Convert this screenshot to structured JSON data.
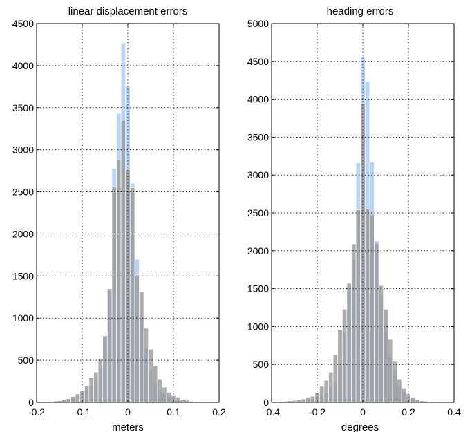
{
  "chart_data": [
    {
      "type": "bar",
      "title": "linear displacement errors",
      "xlabel": "meters",
      "ylabel": "",
      "xlim": [
        -0.2,
        0.2
      ],
      "ylim": [
        0,
        4500
      ],
      "xticks": [
        -0.2,
        -0.1,
        0,
        0.1,
        0.2
      ],
      "xtick_labels": [
        "-0.2",
        "-0.1",
        "0",
        "0.1",
        "0.2"
      ],
      "yticks": [
        0,
        500,
        1000,
        1500,
        2000,
        2500,
        3000,
        3500,
        4000,
        4500
      ],
      "ytick_labels": [
        "0",
        "500",
        "1000",
        "1500",
        "2000",
        "2500",
        "3000",
        "3500",
        "4000",
        "4500"
      ],
      "grid": true,
      "bin_width": 0.01,
      "x": [
        -0.17,
        -0.16,
        -0.15,
        -0.14,
        -0.13,
        -0.12,
        -0.11,
        -0.1,
        -0.09,
        -0.08,
        -0.07,
        -0.06,
        -0.05,
        -0.04,
        -0.03,
        -0.02,
        -0.01,
        0.0,
        0.01,
        0.02,
        0.03,
        0.04,
        0.05,
        0.06,
        0.07,
        0.08,
        0.09,
        0.1,
        0.11,
        0.12,
        0.13,
        0.14,
        0.15,
        0.16,
        0.17
      ],
      "series": [
        {
          "values": [
            5,
            10,
            15,
            25,
            35,
            55,
            75,
            110,
            145,
            200,
            280,
            400,
            790,
            1340,
            2780,
            3430,
            4270,
            3760,
            2600,
            1700,
            1020,
            640,
            390,
            240,
            150,
            100,
            70,
            50,
            35,
            25,
            15,
            10,
            5,
            5,
            5
          ],
          "color": "#b8d4f7"
        },
        {
          "values": [
            10,
            15,
            20,
            30,
            45,
            70,
            100,
            140,
            200,
            290,
            360,
            520,
            790,
            1350,
            2560,
            2880,
            3350,
            2760,
            2550,
            1500,
            1310,
            880,
            630,
            430,
            270,
            180,
            120,
            80,
            55,
            35,
            25,
            15,
            10,
            5,
            5
          ],
          "color": "#9b9b9b"
        }
      ]
    },
    {
      "type": "bar",
      "title": "heading errors",
      "xlabel": "degrees",
      "ylabel": "",
      "xlim": [
        -0.4,
        0.4
      ],
      "ylim": [
        0,
        5000
      ],
      "xticks": [
        -0.4,
        -0.2,
        0,
        0.2,
        0.4
      ],
      "xtick_labels": [
        "-0.4",
        "-0.2",
        "0",
        "0.2",
        "0.4"
      ],
      "yticks": [
        0,
        500,
        1000,
        1500,
        2000,
        2500,
        3000,
        3500,
        4000,
        4500,
        5000
      ],
      "ytick_labels": [
        "0",
        "500",
        "1000",
        "1500",
        "2000",
        "2500",
        "3000",
        "3500",
        "4000",
        "4500",
        "5000"
      ],
      "grid": true,
      "bin_width": 0.02,
      "x": [
        -0.36,
        -0.34,
        -0.32,
        -0.3,
        -0.28,
        -0.26,
        -0.24,
        -0.22,
        -0.2,
        -0.18,
        -0.16,
        -0.14,
        -0.12,
        -0.1,
        -0.08,
        -0.06,
        -0.04,
        -0.02,
        0.0,
        0.02,
        0.04,
        0.06,
        0.08,
        0.1,
        0.12,
        0.14,
        0.16,
        0.18,
        0.2,
        0.22,
        0.24,
        0.26,
        0.28,
        0.3,
        0.32,
        0.34,
        0.36
      ],
      "series": [
        {
          "values": [
            5,
            5,
            10,
            10,
            15,
            20,
            30,
            40,
            55,
            90,
            130,
            200,
            270,
            470,
            910,
            1540,
            1880,
            3160,
            4550,
            4230,
            3170,
            2130,
            1420,
            1000,
            590,
            420,
            230,
            140,
            80,
            40,
            25,
            15,
            10,
            5,
            5,
            5,
            5
          ],
          "color": "#b8d4f7"
        },
        {
          "values": [
            10,
            15,
            20,
            25,
            35,
            45,
            60,
            80,
            130,
            210,
            290,
            400,
            630,
            960,
            1230,
            1570,
            2090,
            2540,
            3940,
            2550,
            2480,
            2100,
            1540,
            1230,
            830,
            540,
            300,
            180,
            110,
            60,
            35,
            20,
            15,
            10,
            5,
            5,
            5
          ],
          "color": "#9b9b9b"
        }
      ]
    }
  ]
}
